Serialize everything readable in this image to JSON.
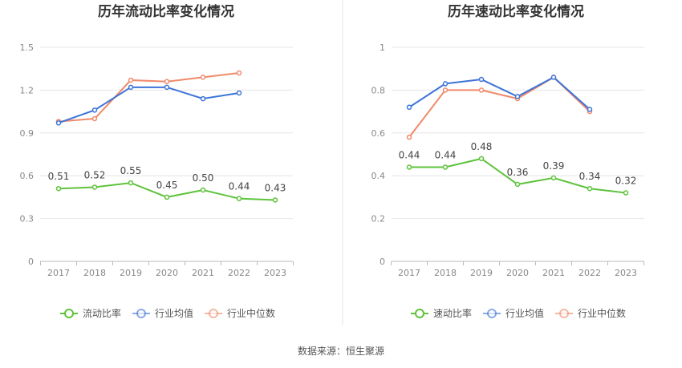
{
  "source": "数据来源：恒生聚源",
  "colors": {
    "company": "#5ec33b",
    "industry_avg": "#3d74d8",
    "industry_median": "#f0896a",
    "grid": "#e6e6e6",
    "axis": "#bbbbbb",
    "divider": "#e6e6e6"
  },
  "chart_data": [
    {
      "type": "line",
      "title": "历年流动比率变化情况",
      "categories": [
        "2017",
        "2018",
        "2019",
        "2020",
        "2021",
        "2022",
        "2023"
      ],
      "ylim": [
        0,
        1.5
      ],
      "yticks": [
        "0",
        "0.3",
        "0.6",
        "0.9",
        "1.2",
        "1.5"
      ],
      "grid": true,
      "legend_position": "bottom",
      "series": [
        {
          "name": "流动比率",
          "color": "#5ec33b",
          "values": [
            0.51,
            0.52,
            0.55,
            0.45,
            0.5,
            0.44,
            0.43
          ],
          "labels": [
            "0.51",
            "0.52",
            "0.55",
            "0.45",
            "0.50",
            "0.44",
            "0.43"
          ]
        },
        {
          "name": "行业均值",
          "color": "#3d74d8",
          "values": [
            0.97,
            1.06,
            1.22,
            1.22,
            1.14,
            1.18,
            null
          ]
        },
        {
          "name": "行业中位数",
          "color": "#f0896a",
          "values": [
            0.98,
            1.0,
            1.27,
            1.26,
            1.29,
            1.32,
            null
          ]
        }
      ]
    },
    {
      "type": "line",
      "title": "历年速动比率变化情况",
      "categories": [
        "2017",
        "2018",
        "2019",
        "2020",
        "2021",
        "2022",
        "2023"
      ],
      "ylim": [
        0,
        1
      ],
      "yticks": [
        "0",
        "0.2",
        "0.4",
        "0.6",
        "0.8",
        "1"
      ],
      "grid": true,
      "legend_position": "bottom",
      "series": [
        {
          "name": "速动比率",
          "color": "#5ec33b",
          "values": [
            0.44,
            0.44,
            0.48,
            0.36,
            0.39,
            0.34,
            0.32
          ],
          "labels": [
            "0.44",
            "0.44",
            "0.48",
            "0.36",
            "0.39",
            "0.34",
            "0.32"
          ]
        },
        {
          "name": "行业均值",
          "color": "#3d74d8",
          "values": [
            0.72,
            0.83,
            0.85,
            0.77,
            0.86,
            0.71,
            null
          ]
        },
        {
          "name": "行业中位数",
          "color": "#f0896a",
          "values": [
            0.58,
            0.8,
            0.8,
            0.76,
            0.86,
            0.7,
            null
          ]
        }
      ]
    }
  ]
}
